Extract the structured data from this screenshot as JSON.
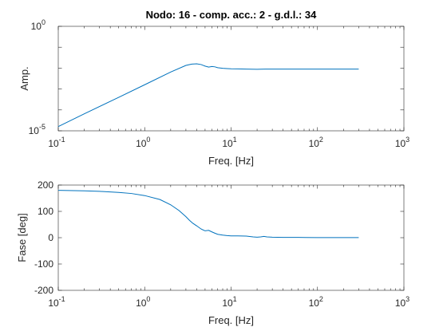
{
  "chart_data": [
    {
      "type": "line",
      "title": "Nodo: 16 - comp. acc.: 2 - g.d.l.: 34",
      "xlabel": "Freq. [Hz]",
      "ylabel": "Amp.",
      "xscale": "log",
      "yscale": "log",
      "xlim": [
        0.1,
        1000
      ],
      "ylim": [
        1e-05,
        1
      ],
      "grid": true,
      "xticks": [
        {
          "base": "10",
          "exp": "-1"
        },
        {
          "base": "10",
          "exp": "0"
        },
        {
          "base": "10",
          "exp": "1"
        },
        {
          "base": "10",
          "exp": "2"
        },
        {
          "base": "10",
          "exp": "3"
        }
      ],
      "yticks": [
        {
          "base": "10",
          "exp": "-5"
        },
        {
          "base": "10",
          "exp": "0"
        }
      ],
      "series": [
        {
          "color": "#0072BD",
          "x": [
            0.1,
            0.2,
            0.5,
            1,
            2,
            3,
            3.5,
            4,
            4.5,
            5,
            5.5,
            6,
            6.5,
            7,
            8,
            9,
            10,
            12,
            15,
            20,
            22,
            25,
            30,
            50,
            100,
            200,
            300
          ],
          "y": [
            1.6e-05,
            6.5e-05,
            0.0004,
            0.0016,
            0.0065,
            0.0135,
            0.0155,
            0.016,
            0.0148,
            0.0125,
            0.0112,
            0.012,
            0.0115,
            0.0105,
            0.0098,
            0.0095,
            0.0093,
            0.0092,
            0.009,
            0.0088,
            0.0089,
            0.009,
            0.009,
            0.009,
            0.009,
            0.009,
            0.009
          ]
        }
      ]
    },
    {
      "type": "line",
      "xlabel": "Freq. [Hz]",
      "ylabel": "Fase [deg]",
      "xscale": "log",
      "yscale": "linear",
      "xlim": [
        0.1,
        1000
      ],
      "ylim": [
        -200,
        200
      ],
      "grid": true,
      "xticks": [
        {
          "base": "10",
          "exp": "-1"
        },
        {
          "base": "10",
          "exp": "0"
        },
        {
          "base": "10",
          "exp": "1"
        },
        {
          "base": "10",
          "exp": "2"
        },
        {
          "base": "10",
          "exp": "3"
        }
      ],
      "yticks": [
        "-200",
        "-100",
        "0",
        "100",
        "200"
      ],
      "series": [
        {
          "color": "#0072BD",
          "x": [
            0.1,
            0.2,
            0.3,
            0.5,
            0.7,
            1,
            1.5,
            2,
            2.5,
            3,
            3.3,
            3.6,
            4,
            4.5,
            5,
            5.5,
            6,
            6.5,
            7,
            8,
            9,
            10,
            12,
            15,
            18,
            20,
            22,
            24,
            26,
            30,
            40,
            60,
            100,
            200,
            300
          ],
          "y": [
            180,
            178,
            176,
            172,
            168,
            160,
            145,
            125,
            103,
            80,
            66,
            55,
            45,
            33,
            26,
            28,
            22,
            17,
            13,
            10,
            8,
            7,
            7,
            6,
            3,
            2,
            3,
            5,
            3,
            2,
            1,
            1,
            0.5,
            0.5,
            0.5
          ]
        }
      ]
    }
  ]
}
